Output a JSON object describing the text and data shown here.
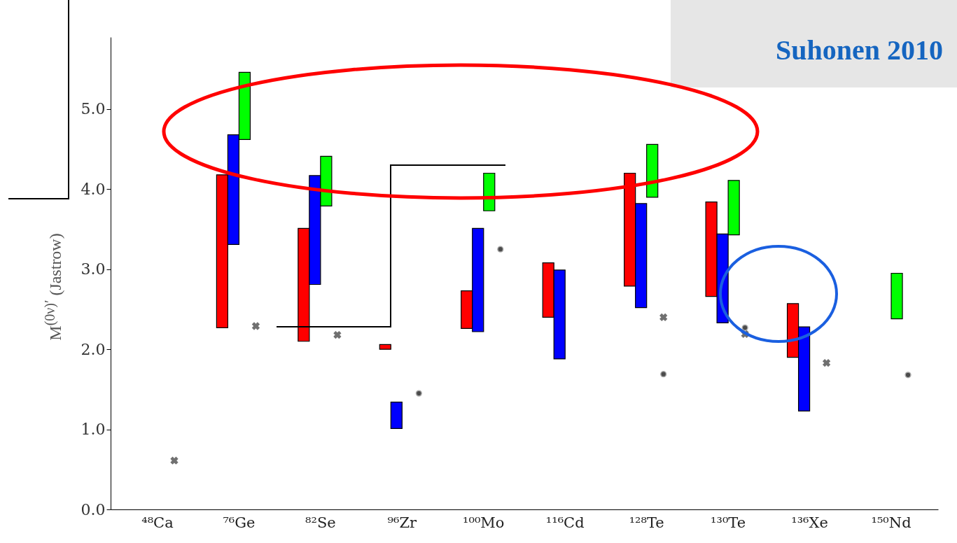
{
  "chart_data": {
    "type": "bar",
    "ylabel": "M$^{(0ν)′}$ (Jastrow)",
    "annotations": [
      "Suhonen 2010"
    ],
    "categories": [
      "⁴⁸Ca",
      "⁷⁶Ge",
      "⁸²Se",
      "⁹⁶Zr",
      "¹⁰⁰Mo",
      "¹¹⁶Cd",
      "¹²⁸Te",
      "¹³⁰Te",
      "¹³⁶Xe",
      "¹⁵⁰Nd"
    ],
    "ylim": [
      0,
      5.9
    ],
    "yticks": [
      {
        "value": 0,
        "label": "0.0"
      },
      {
        "value": 1,
        "label": "1.0"
      },
      {
        "value": 2,
        "label": "2.0"
      },
      {
        "value": 3,
        "label": "3.0"
      },
      {
        "value": 4,
        "label": "4.0"
      },
      {
        "value": 5,
        "label": "5.0"
      }
    ],
    "series": [
      {
        "color": "#ff0000",
        "base": [
          null,
          2.27,
          2.1,
          2.0,
          2.26,
          2.4,
          2.79,
          2.66,
          1.9,
          null
        ],
        "values": [
          null,
          1.91,
          1.41,
          0.06,
          0.47,
          0.68,
          1.41,
          1.18,
          0.67,
          null
        ]
      },
      {
        "color": "#0000ff",
        "base": [
          null,
          3.31,
          2.81,
          1.01,
          2.22,
          1.88,
          2.52,
          2.33,
          1.23,
          null
        ],
        "values": [
          null,
          1.37,
          1.36,
          0.33,
          1.29,
          1.11,
          1.3,
          1.11,
          1.05,
          null
        ]
      },
      {
        "color": "#00ff00",
        "base": [
          null,
          4.62,
          3.79,
          null,
          3.73,
          null,
          3.9,
          3.43,
          null,
          2.38
        ],
        "values": [
          null,
          0.84,
          0.62,
          null,
          0.47,
          null,
          0.66,
          0.68,
          null,
          0.57
        ]
      },
      {
        "type": "scatter",
        "marker": "cross",
        "color": "#333333",
        "values": [
          0.61,
          2.29,
          2.18,
          null,
          null,
          null,
          2.4,
          2.19,
          1.83,
          null
        ]
      },
      {
        "type": "scatter",
        "marker": "circle",
        "color": "#000000",
        "values": [
          null,
          null,
          null,
          1.45,
          3.25,
          null,
          1.69,
          2.27,
          null,
          1.68
        ]
      }
    ]
  }
}
